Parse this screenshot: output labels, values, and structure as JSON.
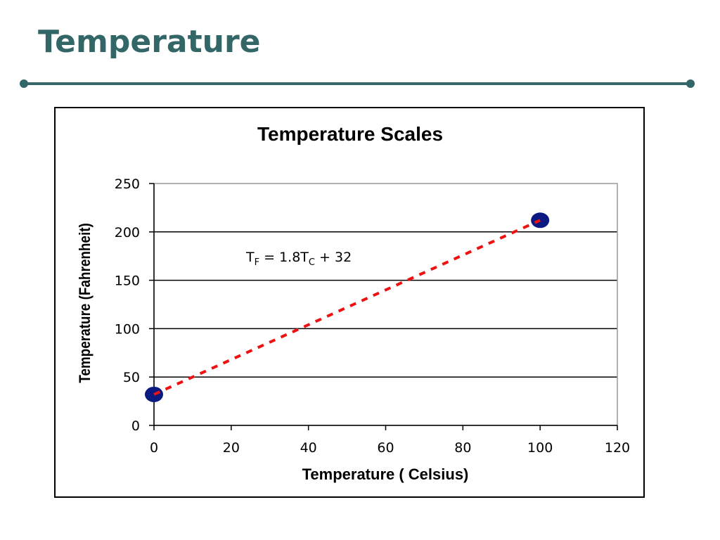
{
  "slide": {
    "title": "Temperature",
    "accent_color": "#336666"
  },
  "chart_data": {
    "type": "scatter",
    "title": "Temperature Scales",
    "xlabel": "Temperature ( Celsius)",
    "ylabel": "Temperature (Fahrenheit)",
    "xlim": [
      0,
      120
    ],
    "ylim": [
      0,
      250
    ],
    "x_ticks": [
      0,
      20,
      40,
      60,
      80,
      100,
      120
    ],
    "y_ticks": [
      0,
      50,
      100,
      150,
      200,
      250
    ],
    "grid": "horizontal",
    "points": [
      {
        "x": 0,
        "y": 32
      },
      {
        "x": 100,
        "y": 212
      }
    ],
    "trendline": {
      "style": "dashed",
      "color": "#ee1111",
      "from": {
        "x": 0,
        "y": 32
      },
      "to": {
        "x": 100,
        "y": 212
      }
    },
    "point_color": "#0a1a80",
    "equation": {
      "t1": "T",
      "s1": "F",
      "t2": " = 1.8T",
      "s2": "C",
      "t3": " + 32"
    }
  }
}
